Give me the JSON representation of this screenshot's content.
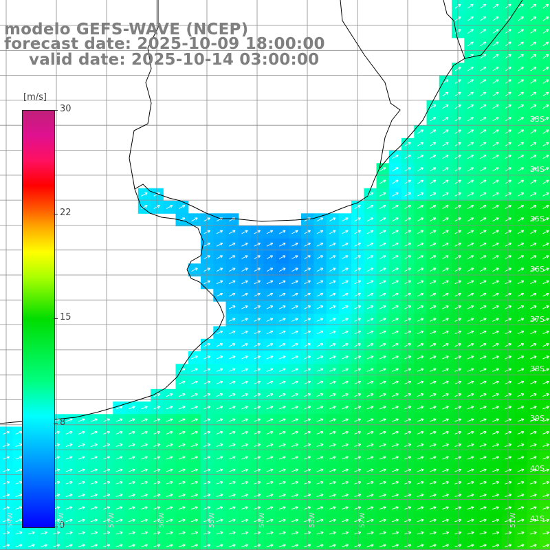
{
  "title": {
    "line1": "modelo GEFS-WAVE (NCEP)",
    "line2": "forecast date: 2025-10-09 18:00:00",
    "line3": "valid date: 2025-10-14 03:00:00"
  },
  "colorbar": {
    "unit": "[m/s]",
    "ticks": [
      "30",
      "22",
      "15",
      "8",
      "0"
    ],
    "colors": [
      "#0000ff",
      "#00ffff",
      "#00dd00",
      "#ffff00",
      "#ff0000",
      "#c0207a"
    ]
  },
  "lat_labels": [
    "33S",
    "34S",
    "35S",
    "36S",
    "37S",
    "38S",
    "39S",
    "40S",
    "41S"
  ],
  "lon_labels": [
    "59W",
    "58W",
    "57W",
    "56W",
    "55W",
    "54W",
    "53W",
    "52W",
    "51W"
  ],
  "colors": {
    "land": "#ffffff",
    "coastline": "#000000",
    "grid": "#8a8a8a",
    "arrows": "#ffffff",
    "title": "#7f7f7f"
  }
}
